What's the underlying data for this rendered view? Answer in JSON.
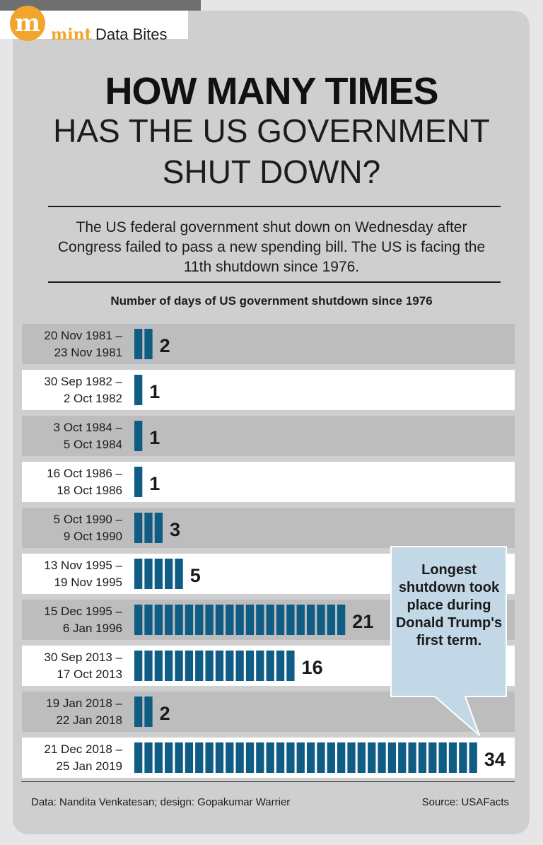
{
  "brand": {
    "logo_letter": "m",
    "mint": "mint",
    "label": "Data Bites",
    "logo_color": "#f2a52b"
  },
  "headline": {
    "line1": "HOW MANY TIMES",
    "line2": "HAS THE US GOVERNMENT",
    "line3": "SHUT DOWN?"
  },
  "intro": "The US federal government shut down on Wednesday after Congress failed to pass a new spending bill. The US is facing the 11th shutdown since 1976.",
  "callout": "Longest shutdown took place during Donald Trump's first term.",
  "footer": {
    "credits": "Data: Nandita Venkatesan; design: Gopakumar Warrier",
    "source": "Source: USAFacts"
  },
  "colors": {
    "bar": "#0f5c85",
    "row_shaded": "#bdbdbd",
    "row_plain": "#ffffff",
    "callout_fill": "#c3d8e7"
  },
  "chart_data": {
    "type": "bar",
    "orientation": "horizontal",
    "title": "Number of days of US government shutdown since 1976",
    "categories": [
      [
        "20 Nov 1981 –",
        "23 Nov 1981"
      ],
      [
        "30 Sep 1982 –",
        "2 Oct 1982"
      ],
      [
        "3 Oct 1984 –",
        "5 Oct 1984"
      ],
      [
        "16 Oct 1986 –",
        "18 Oct 1986"
      ],
      [
        "5 Oct 1990 –",
        "9 Oct 1990"
      ],
      [
        "13 Nov 1995 –",
        "19 Nov 1995"
      ],
      [
        "15 Dec 1995 –",
        "6 Jan 1996"
      ],
      [
        "30 Sep 2013 –",
        "17 Oct 2013"
      ],
      [
        "19 Jan 2018 –",
        "22 Jan 2018"
      ],
      [
        "21 Dec 2018 –",
        "25 Jan 2019"
      ]
    ],
    "values": [
      2,
      1,
      1,
      1,
      3,
      5,
      21,
      16,
      2,
      34
    ],
    "unit": "days",
    "grid": false,
    "legend": "none"
  }
}
